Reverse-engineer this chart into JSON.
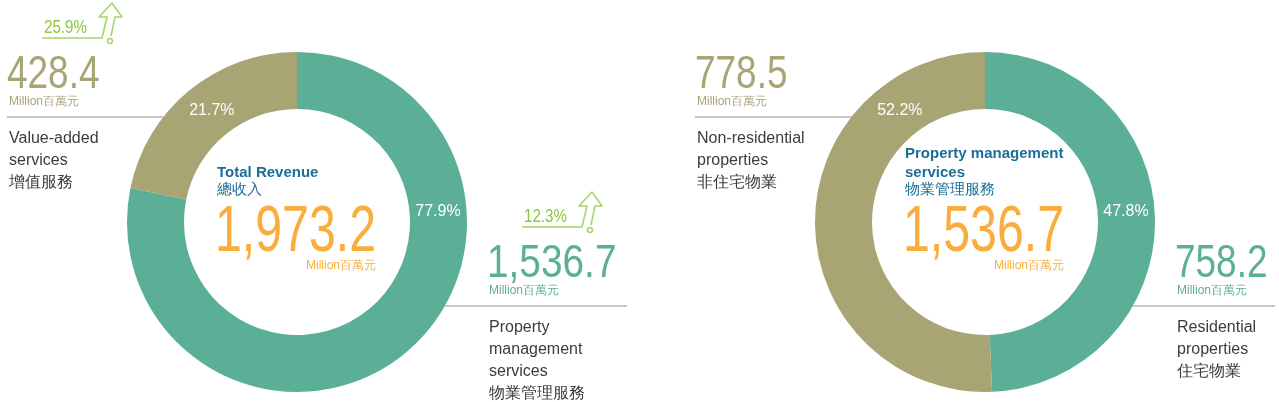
{
  "chart_data": [
    {
      "type": "donut",
      "title": "Total Revenue",
      "subtitle": "總收入",
      "categories": [
        "Property management services 物業管理服務",
        "Value-added services 增值服務"
      ],
      "values": [
        1536.7,
        428.4
      ],
      "colors": [
        "#5aaf96",
        "#a8a474"
      ],
      "value_labels": [
        "1,536.7",
        "428.4"
      ],
      "annotations": [
        "1,973.2",
        "Million百萬元",
        {
          "text": "77.9%",
          "x": "Property management services 物業管理服務"
        },
        {
          "text": "21.7%",
          "x": "Value-added services 增值服務"
        },
        {
          "text": "12.3%",
          "x": "Property management services 物業管理服務"
        },
        {
          "text": "25.9%",
          "x": "Value-added services 增值服務"
        }
      ]
    },
    {
      "type": "donut",
      "title": "Property management services",
      "subtitle": "物業管理服務",
      "categories": [
        "Residential properties 住宅物業",
        "Non-residential properties 非住宅物業"
      ],
      "values": [
        758.2,
        778.5
      ],
      "colors": [
        "#5aaf96",
        "#a8a474"
      ],
      "value_labels": [
        "758.2",
        "778.5"
      ],
      "annotations": [
        "1,536.7",
        "Million百萬元",
        {
          "text": "47.8%",
          "x": "Residential properties 住宅物業"
        },
        {
          "text": "52.2%",
          "x": "Non-residential properties 非住宅物業"
        }
      ]
    }
  ]
}
